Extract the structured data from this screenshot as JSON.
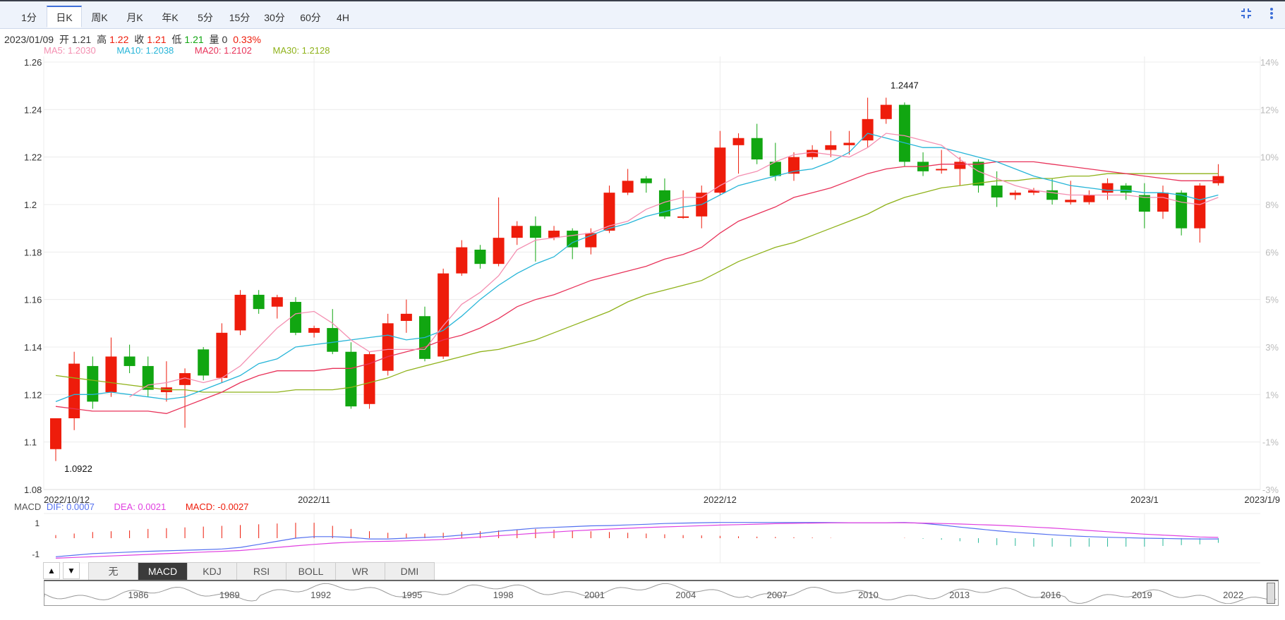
{
  "tabs": [
    {
      "label": "1分",
      "active": false
    },
    {
      "label": "日K",
      "active": true
    },
    {
      "label": "周K",
      "active": false
    },
    {
      "label": "月K",
      "active": false
    },
    {
      "label": "年K",
      "active": false
    },
    {
      "label": "5分",
      "active": false
    },
    {
      "label": "15分",
      "active": false
    },
    {
      "label": "30分",
      "active": false
    },
    {
      "label": "60分",
      "active": false
    },
    {
      "label": "4H",
      "active": false
    }
  ],
  "toolbar": {
    "collapse_icon": "collapse-icon",
    "more_icon": "more-vertical-icon"
  },
  "info": {
    "date": "2023/01/09",
    "open_label": "开",
    "open": "1.21",
    "high_label": "高",
    "high": "1.22",
    "close_label": "收",
    "close": "1.21",
    "low_label": "低",
    "low": "1.21",
    "volume_label": "量",
    "volume": "0",
    "change": "0.33%"
  },
  "ma_legend": [
    {
      "label": "MA5: 1.2030",
      "color": "#f48fb1"
    },
    {
      "label": "MA10: 1.2038",
      "color": "#26b5d8"
    },
    {
      "label": "MA20: 1.2102",
      "color": "#e8335a"
    },
    {
      "label": "MA30: 1.2128",
      "color": "#8fb21a"
    }
  ],
  "macd_label": {
    "name": "MACD",
    "dif": "DIF: 0.0007",
    "dea": "DEA: 0.0021",
    "macd": "MACD: -0.0027"
  },
  "colors": {
    "up": "#ee1c0b",
    "down": "#11a611",
    "dif": "#5470f0",
    "dea": "#e040e0",
    "grid": "#ececec",
    "axis_text": "#bbbbbb"
  },
  "chart_data": {
    "type": "candlestick",
    "ylim": [
      1.08,
      1.26
    ],
    "yticks": [
      "1.26",
      "1.24",
      "1.22",
      "1.2",
      "1.18",
      "1.16",
      "1.14",
      "1.12",
      "1.1",
      "1.08"
    ],
    "right_ticks": [
      "14%",
      "12%",
      "10%",
      "8%",
      "6%",
      "5%",
      "3%",
      "1%",
      "-1%",
      "-3%"
    ],
    "xlabels": [
      {
        "label": "2022/10/12",
        "index": 0
      },
      {
        "label": "2022/11",
        "index": 14
      },
      {
        "label": "2022/12",
        "index": 36
      },
      {
        "label": "2023/1",
        "index": 59
      },
      {
        "label": "2023/1/9",
        "index": 63
      }
    ],
    "max_label": {
      "text": "1.2447",
      "index": 46,
      "value": 1.2447
    },
    "min_label": {
      "text": "1.0922",
      "index": 0,
      "value": 1.0922
    },
    "candles": [
      [
        1.097,
        1.11,
        1.11,
        1.092
      ],
      [
        1.11,
        1.133,
        1.138,
        1.105
      ],
      [
        1.132,
        1.117,
        1.136,
        1.114
      ],
      [
        1.121,
        1.136,
        1.144,
        1.119
      ],
      [
        1.136,
        1.132,
        1.141,
        1.129
      ],
      [
        1.132,
        1.122,
        1.136,
        1.119
      ],
      [
        1.121,
        1.123,
        1.134,
        1.117
      ],
      [
        1.124,
        1.129,
        1.131,
        1.106
      ],
      [
        1.139,
        1.128,
        1.14,
        1.126
      ],
      [
        1.127,
        1.146,
        1.15,
        1.125
      ],
      [
        1.147,
        1.162,
        1.164,
        1.145
      ],
      [
        1.162,
        1.156,
        1.164,
        1.154
      ],
      [
        1.157,
        1.161,
        1.162,
        1.152
      ],
      [
        1.159,
        1.146,
        1.161,
        1.145
      ],
      [
        1.146,
        1.148,
        1.149,
        1.144
      ],
      [
        1.148,
        1.138,
        1.156,
        1.137
      ],
      [
        1.138,
        1.115,
        1.142,
        1.114
      ],
      [
        1.116,
        1.137,
        1.138,
        1.114
      ],
      [
        1.13,
        1.15,
        1.154,
        1.128
      ],
      [
        1.151,
        1.154,
        1.16,
        1.146
      ],
      [
        1.153,
        1.135,
        1.157,
        1.134
      ],
      [
        1.136,
        1.171,
        1.173,
        1.135
      ],
      [
        1.171,
        1.182,
        1.185,
        1.17
      ],
      [
        1.181,
        1.175,
        1.183,
        1.173
      ],
      [
        1.175,
        1.186,
        1.203,
        1.174
      ],
      [
        1.186,
        1.191,
        1.193,
        1.183
      ],
      [
        1.191,
        1.186,
        1.195,
        1.176
      ],
      [
        1.186,
        1.189,
        1.191,
        1.185
      ],
      [
        1.189,
        1.182,
        1.19,
        1.177
      ],
      [
        1.182,
        1.188,
        1.19,
        1.179
      ],
      [
        1.189,
        1.205,
        1.208,
        1.188
      ],
      [
        1.205,
        1.21,
        1.215,
        1.204
      ],
      [
        1.211,
        1.209,
        1.212,
        1.205
      ],
      [
        1.206,
        1.195,
        1.211,
        1.194
      ],
      [
        1.195,
        1.195,
        1.206,
        1.194
      ],
      [
        1.195,
        1.205,
        1.208,
        1.19
      ],
      [
        1.205,
        1.224,
        1.231,
        1.204
      ],
      [
        1.225,
        1.228,
        1.23,
        1.213
      ],
      [
        1.228,
        1.219,
        1.234,
        1.217
      ],
      [
        1.218,
        1.212,
        1.226,
        1.21
      ],
      [
        1.213,
        1.22,
        1.222,
        1.21
      ],
      [
        1.22,
        1.223,
        1.225,
        1.219
      ],
      [
        1.223,
        1.225,
        1.231,
        1.22
      ],
      [
        1.225,
        1.226,
        1.231,
        1.221
      ],
      [
        1.227,
        1.236,
        1.245,
        1.224
      ],
      [
        1.236,
        1.242,
        1.245,
        1.234
      ],
      [
        1.242,
        1.218,
        1.243,
        1.216
      ],
      [
        1.218,
        1.214,
        1.222,
        1.212
      ],
      [
        1.215,
        1.215,
        1.223,
        1.213
      ],
      [
        1.215,
        1.218,
        1.22,
        1.208
      ],
      [
        1.218,
        1.208,
        1.219,
        1.205
      ],
      [
        1.208,
        1.203,
        1.214,
        1.199
      ],
      [
        1.204,
        1.205,
        1.206,
        1.202
      ],
      [
        1.205,
        1.206,
        1.207,
        1.204
      ],
      [
        1.206,
        1.202,
        1.211,
        1.2
      ],
      [
        1.201,
        1.202,
        1.21,
        1.2
      ],
      [
        1.201,
        1.204,
        1.206,
        1.2
      ],
      [
        1.205,
        1.209,
        1.211,
        1.202
      ],
      [
        1.208,
        1.205,
        1.209,
        1.202
      ],
      [
        1.204,
        1.197,
        1.209,
        1.19
      ],
      [
        1.197,
        1.205,
        1.208,
        1.194
      ],
      [
        1.205,
        1.19,
        1.206,
        1.187
      ],
      [
        1.19,
        1.208,
        1.209,
        1.184
      ],
      [
        1.209,
        1.212,
        1.217,
        1.208
      ]
    ],
    "ma5": [
      null,
      null,
      null,
      null,
      1.119,
      1.124,
      1.125,
      1.127,
      1.125,
      1.127,
      1.132,
      1.14,
      1.148,
      1.154,
      1.155,
      1.15,
      1.143,
      1.138,
      1.139,
      1.139,
      1.139,
      1.149,
      1.158,
      1.163,
      1.17,
      1.181,
      1.185,
      1.186,
      1.187,
      1.188,
      1.191,
      1.193,
      1.198,
      1.201,
      1.203,
      1.203,
      1.208,
      1.212,
      1.214,
      1.218,
      1.221,
      1.222,
      1.221,
      1.22,
      1.224,
      1.23,
      1.229,
      1.227,
      1.225,
      1.219,
      1.214,
      1.211,
      1.208,
      1.206,
      1.205,
      1.204,
      1.204,
      1.204,
      1.204,
      1.203,
      1.203,
      1.201,
      1.2,
      1.203
    ],
    "ma10": [
      1.117,
      1.12,
      1.12,
      1.121,
      1.12,
      1.119,
      1.118,
      1.119,
      1.122,
      1.125,
      1.128,
      1.133,
      1.135,
      1.14,
      1.141,
      1.142,
      1.143,
      1.144,
      1.145,
      1.143,
      1.144,
      1.147,
      1.153,
      1.16,
      1.166,
      1.171,
      1.175,
      1.178,
      1.184,
      1.187,
      1.19,
      1.192,
      1.195,
      1.197,
      1.199,
      1.2,
      1.204,
      1.208,
      1.21,
      1.212,
      1.214,
      1.215,
      1.218,
      1.222,
      1.23,
      1.228,
      1.226,
      1.224,
      1.224,
      1.222,
      1.22,
      1.218,
      1.215,
      1.212,
      1.21,
      1.208,
      1.207,
      1.206,
      1.206,
      1.205,
      1.205,
      1.204,
      1.202,
      1.204
    ],
    "ma20": [
      1.115,
      1.114,
      1.113,
      1.113,
      1.113,
      1.113,
      1.112,
      1.115,
      1.118,
      1.121,
      1.125,
      1.128,
      1.13,
      1.13,
      1.13,
      1.131,
      1.131,
      1.133,
      1.136,
      1.138,
      1.14,
      1.143,
      1.145,
      1.148,
      1.152,
      1.157,
      1.16,
      1.162,
      1.165,
      1.168,
      1.17,
      1.172,
      1.174,
      1.177,
      1.179,
      1.182,
      1.188,
      1.193,
      1.196,
      1.199,
      1.203,
      1.205,
      1.207,
      1.21,
      1.213,
      1.215,
      1.216,
      1.216,
      1.217,
      1.217,
      1.217,
      1.218,
      1.218,
      1.218,
      1.217,
      1.216,
      1.215,
      1.214,
      1.213,
      1.212,
      1.211,
      1.21,
      1.21,
      1.21
    ],
    "ma30": [
      1.128,
      1.127,
      1.126,
      1.125,
      1.124,
      1.123,
      1.122,
      1.122,
      1.121,
      1.121,
      1.121,
      1.121,
      1.121,
      1.122,
      1.122,
      1.122,
      1.123,
      1.125,
      1.127,
      1.13,
      1.132,
      1.134,
      1.136,
      1.138,
      1.139,
      1.141,
      1.143,
      1.146,
      1.149,
      1.152,
      1.155,
      1.159,
      1.162,
      1.164,
      1.166,
      1.168,
      1.172,
      1.176,
      1.179,
      1.182,
      1.184,
      1.187,
      1.19,
      1.193,
      1.196,
      1.2,
      1.203,
      1.205,
      1.207,
      1.208,
      1.209,
      1.21,
      1.21,
      1.211,
      1.211,
      1.212,
      1.212,
      1.213,
      1.213,
      1.213,
      1.213,
      1.213,
      1.213,
      1.213
    ],
    "macd": {
      "yticks": [
        "1",
        "-1"
      ],
      "ylim": [
        -1.6,
        1.6
      ],
      "dif": [
        -1.2,
        -1.1,
        -1.0,
        -0.95,
        -0.9,
        -0.85,
        -0.82,
        -0.78,
        -0.75,
        -0.7,
        -0.6,
        -0.4,
        -0.2,
        0.0,
        0.1,
        0.1,
        0.05,
        -0.05,
        -0.05,
        0.0,
        0.05,
        0.1,
        0.2,
        0.3,
        0.45,
        0.55,
        0.65,
        0.7,
        0.75,
        0.8,
        0.82,
        0.86,
        0.9,
        0.95,
        0.98,
        1.0,
        1.02,
        1.02,
        1.02,
        1.02,
        1.02,
        1.02,
        1.01,
        1.0,
        1.0,
        1.0,
        1.02,
        0.96,
        0.85,
        0.72,
        0.6,
        0.48,
        0.38,
        0.3,
        0.22,
        0.15,
        0.1,
        0.06,
        0.03,
        0.0,
        -0.02,
        -0.04,
        -0.05,
        -0.05
      ],
      "dea": [
        -1.3,
        -1.25,
        -1.2,
        -1.15,
        -1.1,
        -1.05,
        -1.0,
        -0.95,
        -0.9,
        -0.85,
        -0.8,
        -0.7,
        -0.6,
        -0.5,
        -0.4,
        -0.32,
        -0.26,
        -0.22,
        -0.2,
        -0.17,
        -0.13,
        -0.08,
        0.0,
        0.08,
        0.16,
        0.24,
        0.32,
        0.4,
        0.47,
        0.53,
        0.59,
        0.64,
        0.69,
        0.73,
        0.77,
        0.81,
        0.85,
        0.88,
        0.91,
        0.94,
        0.96,
        0.98,
        0.99,
        1.0,
        1.0,
        1.0,
        1.0,
        0.98,
        0.95,
        0.92,
        0.88,
        0.84,
        0.78,
        0.72,
        0.66,
        0.58,
        0.5,
        0.42,
        0.34,
        0.26,
        0.2,
        0.14,
        0.08,
        0.05
      ],
      "hist": [
        0.2,
        0.3,
        0.4,
        0.45,
        0.5,
        0.6,
        0.65,
        0.7,
        0.75,
        0.8,
        0.85,
        0.9,
        0.95,
        1.0,
        1.0,
        0.8,
        0.6,
        0.45,
        0.35,
        0.3,
        0.3,
        0.35,
        0.4,
        0.45,
        0.5,
        0.55,
        0.6,
        0.55,
        0.5,
        0.45,
        0.4,
        0.35,
        0.3,
        0.25,
        0.2,
        0.18,
        0.15,
        0.12,
        0.1,
        0.08,
        0.06,
        0.04,
        0.02,
        0.0,
        0.0,
        0.0,
        0.02,
        -0.04,
        -0.1,
        -0.2,
        -0.3,
        -0.45,
        -0.5,
        -0.55,
        -0.55,
        -0.55,
        -0.55,
        -0.55,
        -0.55,
        -0.55,
        -0.5,
        -0.45,
        -0.4,
        -0.3
      ]
    }
  },
  "indicator_tabs": [
    {
      "label": "无",
      "active": false
    },
    {
      "label": "MACD",
      "active": true
    },
    {
      "label": "KDJ",
      "active": false
    },
    {
      "label": "RSI",
      "active": false
    },
    {
      "label": "BOLL",
      "active": false
    },
    {
      "label": "WR",
      "active": false
    },
    {
      "label": "DMI",
      "active": false
    }
  ],
  "indicator_arrows": {
    "up": "▲",
    "down": "▼"
  },
  "overview": {
    "years": [
      "1986",
      "1989",
      "1992",
      "1995",
      "1998",
      "2001",
      "2004",
      "2007",
      "2010",
      "2013",
      "2016",
      "2019",
      "2022"
    ]
  }
}
